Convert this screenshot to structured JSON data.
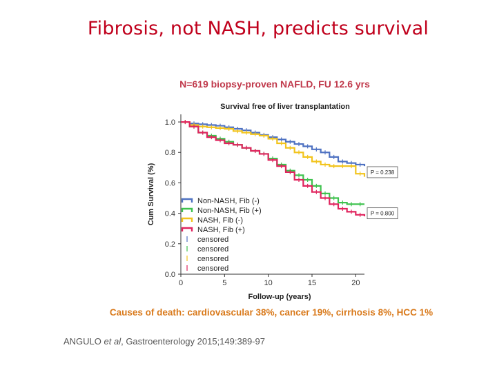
{
  "slide": {
    "title": "Fibrosis, not NASH, predicts survival",
    "subtitle": "N=619 biopsy-proven NAFLD, FU 12.6 yrs",
    "causes": "Causes of death: cardiovascular 38%, cancer 19%, cirrhosis 8%, HCC 1%",
    "reference_authors": "ANGULO ",
    "reference_etal": "et al",
    "reference_journal": ", Gastroenterology 2015;149:389-97"
  },
  "chart_data": {
    "type": "line",
    "title": "Survival free of liver transplantation",
    "xlabel": "Follow-up (years)",
    "ylabel": "Cum Survival (%)",
    "xlim": [
      0,
      21
    ],
    "ylim": [
      0,
      1.05
    ],
    "x_ticks": [
      0,
      5,
      10,
      15,
      20
    ],
    "y_ticks": [
      0.0,
      0.2,
      0.4,
      0.6,
      0.8,
      1.0
    ],
    "y_tick_labels": [
      "0.0",
      "0.2",
      "0.4",
      "0.6",
      "0.8",
      "1.0"
    ],
    "series": [
      {
        "name": "Non-NASH, Fib (-)",
        "color": "#4f72c2",
        "points": [
          [
            0,
            1.0
          ],
          [
            1,
            0.99
          ],
          [
            2,
            0.985
          ],
          [
            3,
            0.98
          ],
          [
            4,
            0.975
          ],
          [
            5,
            0.965
          ],
          [
            6,
            0.955
          ],
          [
            7,
            0.945
          ],
          [
            8,
            0.93
          ],
          [
            9,
            0.915
          ],
          [
            10,
            0.9
          ],
          [
            11,
            0.885
          ],
          [
            12,
            0.87
          ],
          [
            13,
            0.855
          ],
          [
            14,
            0.84
          ],
          [
            15,
            0.82
          ],
          [
            16,
            0.8
          ],
          [
            17,
            0.77
          ],
          [
            18,
            0.74
          ],
          [
            19,
            0.73
          ],
          [
            20,
            0.72
          ],
          [
            21,
            0.71
          ]
        ]
      },
      {
        "name": "Non-NASH, Fib (+)",
        "color": "#3ec24e",
        "points": [
          [
            0,
            1.0
          ],
          [
            1,
            0.97
          ],
          [
            2,
            0.93
          ],
          [
            3,
            0.91
          ],
          [
            4,
            0.89
          ],
          [
            5,
            0.87
          ],
          [
            6,
            0.85
          ],
          [
            7,
            0.83
          ],
          [
            8,
            0.81
          ],
          [
            9,
            0.79
          ],
          [
            10,
            0.76
          ],
          [
            11,
            0.72
          ],
          [
            12,
            0.68
          ],
          [
            13,
            0.65
          ],
          [
            14,
            0.62
          ],
          [
            15,
            0.58
          ],
          [
            16,
            0.53
          ],
          [
            17,
            0.5
          ],
          [
            18,
            0.47
          ],
          [
            19,
            0.46
          ],
          [
            20,
            0.46
          ],
          [
            21,
            0.46
          ]
        ]
      },
      {
        "name": "NASH, Fib (-)",
        "color": "#f2c41d",
        "points": [
          [
            0,
            1.0
          ],
          [
            1,
            0.98
          ],
          [
            2,
            0.97
          ],
          [
            3,
            0.965
          ],
          [
            4,
            0.96
          ],
          [
            5,
            0.955
          ],
          [
            6,
            0.94
          ],
          [
            7,
            0.93
          ],
          [
            8,
            0.92
          ],
          [
            9,
            0.91
          ],
          [
            10,
            0.89
          ],
          [
            11,
            0.86
          ],
          [
            12,
            0.83
          ],
          [
            13,
            0.8
          ],
          [
            14,
            0.77
          ],
          [
            15,
            0.74
          ],
          [
            16,
            0.72
          ],
          [
            17,
            0.71
          ],
          [
            18,
            0.71
          ],
          [
            19,
            0.71
          ],
          [
            20,
            0.66
          ],
          [
            21,
            0.64
          ]
        ]
      },
      {
        "name": "NASH, Fib (+)",
        "color": "#e0245e",
        "points": [
          [
            0,
            1.0
          ],
          [
            1,
            0.97
          ],
          [
            2,
            0.93
          ],
          [
            3,
            0.9
          ],
          [
            4,
            0.88
          ],
          [
            5,
            0.86
          ],
          [
            6,
            0.85
          ],
          [
            7,
            0.83
          ],
          [
            8,
            0.81
          ],
          [
            9,
            0.79
          ],
          [
            10,
            0.75
          ],
          [
            11,
            0.71
          ],
          [
            12,
            0.67
          ],
          [
            13,
            0.62
          ],
          [
            14,
            0.58
          ],
          [
            15,
            0.54
          ],
          [
            16,
            0.5
          ],
          [
            17,
            0.46
          ],
          [
            18,
            0.43
          ],
          [
            19,
            0.41
          ],
          [
            20,
            0.39
          ],
          [
            21,
            0.38
          ]
        ]
      }
    ],
    "legend": {
      "placement": "bottom-left",
      "entries": [
        {
          "label": "Non-NASH, Fib (-)",
          "color": "#4f72c2",
          "kind": "line"
        },
        {
          "label": "Non-NASH, Fib (+)",
          "color": "#3ec24e",
          "kind": "line"
        },
        {
          "label": "NASH, Fib (-)",
          "color": "#f2c41d",
          "kind": "line"
        },
        {
          "label": "NASH, Fib (+)",
          "color": "#e0245e",
          "kind": "line"
        },
        {
          "label": "censored",
          "color": "#4f72c2",
          "kind": "marker"
        },
        {
          "label": "censored",
          "color": "#3ec24e",
          "kind": "marker"
        },
        {
          "label": "censored",
          "color": "#f2c41d",
          "kind": "marker"
        },
        {
          "label": "censored",
          "color": "#e0245e",
          "kind": "marker"
        }
      ]
    },
    "annotations": [
      {
        "text": "P = 0.238",
        "y": 0.67
      },
      {
        "text": "P = 0.800",
        "y": 0.4
      }
    ]
  }
}
